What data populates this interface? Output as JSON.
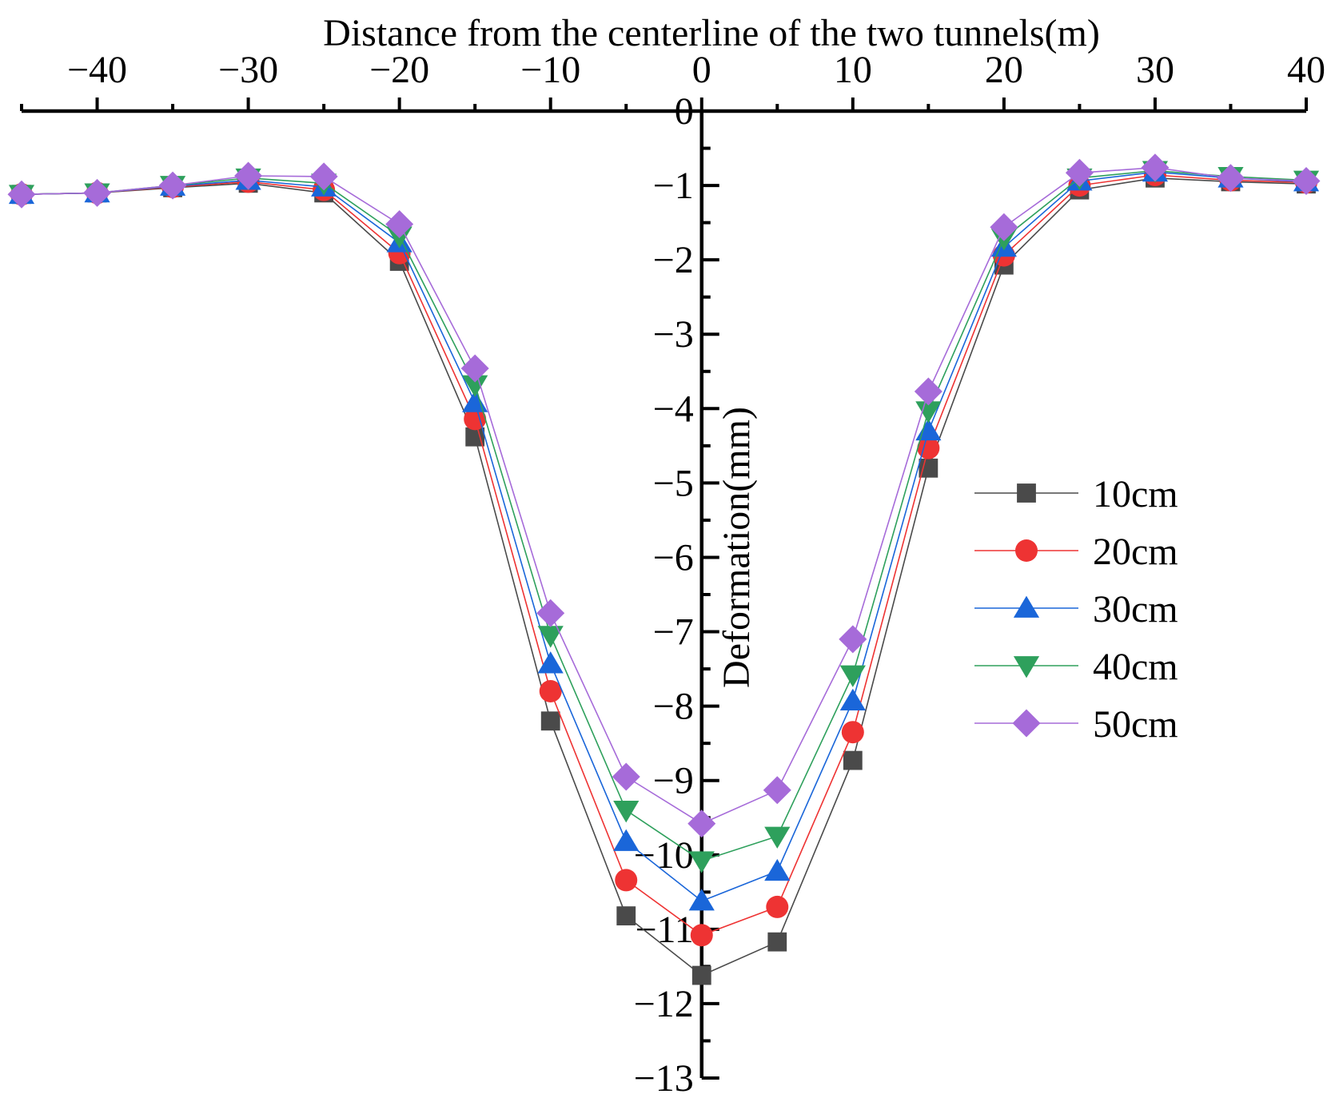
{
  "chart_data": {
    "type": "line",
    "xlabel": "Distance from the centerline of the two tunnels(m)",
    "ylabel": "Deformation(mm)",
    "xlim": [
      -45,
      40
    ],
    "ylim": [
      -13,
      0
    ],
    "x_ticks": [
      -40,
      -30,
      -20,
      -10,
      0,
      10,
      20,
      30,
      40
    ],
    "y_ticks": [
      0,
      -1,
      -2,
      -3,
      -4,
      -5,
      -6,
      -7,
      -8,
      -9,
      -10,
      -11,
      -12,
      -13
    ],
    "x_axis_position": "top",
    "y_axis_crosses_at": 0,
    "grid": false,
    "legend_position": "right",
    "x": [
      -45,
      -40,
      -35,
      -30,
      -25,
      -20,
      -15,
      -10,
      -5,
      0,
      5,
      10,
      15,
      20,
      25,
      30,
      35,
      40
    ],
    "series": [
      {
        "name": "10cm",
        "color": "#4a4a4a",
        "marker": "square",
        "values": [
          -1.12,
          -1.1,
          -1.03,
          -0.97,
          -1.1,
          -2.02,
          -4.38,
          -8.2,
          -10.82,
          -11.62,
          -11.17,
          -8.73,
          -4.8,
          -2.07,
          -1.06,
          -0.9,
          -0.95,
          -0.98
        ]
      },
      {
        "name": "20cm",
        "color": "#ee3333",
        "marker": "circle",
        "values": [
          -1.12,
          -1.1,
          -1.02,
          -0.95,
          -1.06,
          -1.91,
          -4.14,
          -7.8,
          -10.34,
          -11.08,
          -10.7,
          -8.35,
          -4.53,
          -1.94,
          -1.0,
          -0.86,
          -0.93,
          -0.96
        ]
      },
      {
        "name": "30cm",
        "color": "#1a66d9",
        "marker": "triangle-up",
        "values": [
          -1.12,
          -1.1,
          -1.01,
          -0.93,
          -1.02,
          -1.77,
          -3.92,
          -7.43,
          -9.82,
          -10.62,
          -10.22,
          -7.93,
          -4.3,
          -1.83,
          -0.94,
          -0.82,
          -0.9,
          -0.95
        ]
      },
      {
        "name": "40cm",
        "color": "#2ea05c",
        "marker": "triangle-down",
        "values": [
          -1.12,
          -1.1,
          -1.0,
          -0.9,
          -0.97,
          -1.68,
          -3.68,
          -7.05,
          -9.4,
          -10.08,
          -9.75,
          -7.58,
          -4.03,
          -1.71,
          -0.9,
          -0.8,
          -0.88,
          -0.93
        ]
      },
      {
        "name": "50cm",
        "color": "#a66bd9",
        "marker": "diamond",
        "values": [
          -1.12,
          -1.1,
          -1.0,
          -0.87,
          -0.88,
          -1.52,
          -3.46,
          -6.75,
          -8.95,
          -9.58,
          -9.13,
          -7.1,
          -3.77,
          -1.56,
          -0.83,
          -0.76,
          -0.9,
          -0.94
        ]
      }
    ]
  }
}
